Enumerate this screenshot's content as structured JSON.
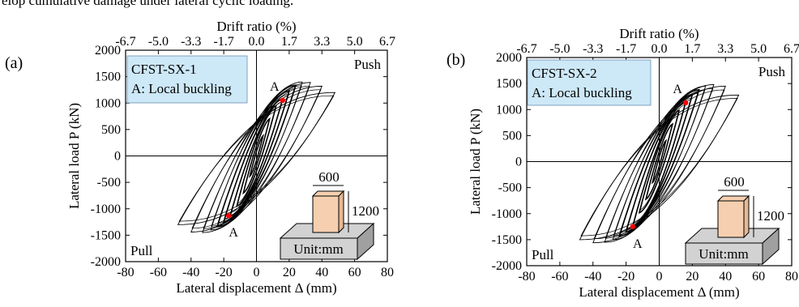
{
  "caption": "elop cumulative damage under lateral cyclic loading.",
  "chart_data": [
    {
      "type": "line",
      "panel_label": "(a)",
      "xlabel": "Lateral displacement Δ (mm)",
      "ylabel": "Lateral load P (kN)",
      "top_xlabel": "Drift ratio (%)",
      "xlim": [
        -80,
        80
      ],
      "ylim": [
        -2000,
        2000
      ],
      "x_ticks": [
        "-80",
        "-60",
        "-40",
        "-20",
        "0",
        "20",
        "40",
        "60",
        "80"
      ],
      "y_ticks": [
        "-2000",
        "-1500",
        "-1000",
        "-500",
        "0",
        "500",
        "1000",
        "1500",
        "2000"
      ],
      "top_ticks": [
        "-6.7",
        "-5.0",
        "-3.3",
        "-1.7",
        "0.0",
        "1.7",
        "3.3",
        "5.0",
        "6.7"
      ],
      "legend": {
        "title": "CFST-SX-1",
        "note": "A: Local buckling"
      },
      "quadrant_labels": {
        "push": "Push",
        "pull": "Pull"
      },
      "marker_label": "A",
      "points_A": [
        [
          16,
          1050
        ],
        [
          -17,
          -1130
        ]
      ],
      "cycles": [
        {
          "dmax": 4,
          "pmax": 380,
          "pmin": -380
        },
        {
          "dmax": 8,
          "pmax": 700,
          "pmin": -700
        },
        {
          "dmax": 12,
          "pmax": 950,
          "pmin": -950
        },
        {
          "dmax": 16,
          "pmax": 1080,
          "pmin": -1130
        },
        {
          "dmax": 20,
          "pmax": 1230,
          "pmin": -1250
        },
        {
          "dmax": 24,
          "pmax": 1340,
          "pmin": -1340
        },
        {
          "dmax": 28,
          "pmax": 1400,
          "pmin": -1400
        },
        {
          "dmax": 33,
          "pmax": 1390,
          "pmin": -1450
        },
        {
          "dmax": 40,
          "pmax": 1320,
          "pmin": -1440
        },
        {
          "dmax": 48,
          "pmax": 1200,
          "pmin": -1300
        }
      ],
      "specimen_inset": {
        "width": "600",
        "height": "1200",
        "unit": "Unit:mm"
      }
    },
    {
      "type": "line",
      "panel_label": "(b)",
      "xlabel": "Lateral displacement Δ (mm)",
      "ylabel": "Lateral load P (kN)",
      "top_xlabel": "Drift ratio (%)",
      "xlim": [
        -80,
        80
      ],
      "ylim": [
        -2000,
        2000
      ],
      "x_ticks": [
        "-80",
        "-60",
        "-40",
        "-20",
        "0",
        "20",
        "40",
        "60",
        "80"
      ],
      "y_ticks": [
        "-2000",
        "-1500",
        "-1000",
        "-500",
        "0",
        "500",
        "1000",
        "1500",
        "2000"
      ],
      "top_ticks": [
        "-6.7",
        "-5.0",
        "-3.3",
        "-1.7",
        "0.0",
        "1.7",
        "3.3",
        "5.0",
        "6.7"
      ],
      "legend": {
        "title": "CFST-SX-2",
        "note": "A: Local buckling"
      },
      "quadrant_labels": {
        "push": "Push",
        "pull": "Pull"
      },
      "marker_label": "A",
      "points_A": [
        [
          16,
          1130
        ],
        [
          -16,
          -1250
        ]
      ],
      "cycles": [
        {
          "dmax": 4,
          "pmax": 400,
          "pmin": -400
        },
        {
          "dmax": 8,
          "pmax": 720,
          "pmin": -720
        },
        {
          "dmax": 12,
          "pmax": 980,
          "pmin": -980
        },
        {
          "dmax": 16,
          "pmax": 1150,
          "pmin": -1250
        },
        {
          "dmax": 20,
          "pmax": 1290,
          "pmin": -1350
        },
        {
          "dmax": 24,
          "pmax": 1380,
          "pmin": -1430
        },
        {
          "dmax": 28,
          "pmax": 1450,
          "pmin": -1500
        },
        {
          "dmax": 33,
          "pmax": 1480,
          "pmin": -1550
        },
        {
          "dmax": 40,
          "pmax": 1450,
          "pmin": -1560
        },
        {
          "dmax": 48,
          "pmax": 1280,
          "pmin": -1500
        }
      ],
      "specimen_inset": {
        "width": "600",
        "height": "1200",
        "unit": "Unit:mm"
      }
    }
  ],
  "colors": {
    "curve": "#000000",
    "marker": "#ff0000",
    "legend_fill": "#cde8f7",
    "column_fill": "#f5cfb0",
    "base_top": "#d2d2d2",
    "base_side": "#a0a0a0"
  }
}
